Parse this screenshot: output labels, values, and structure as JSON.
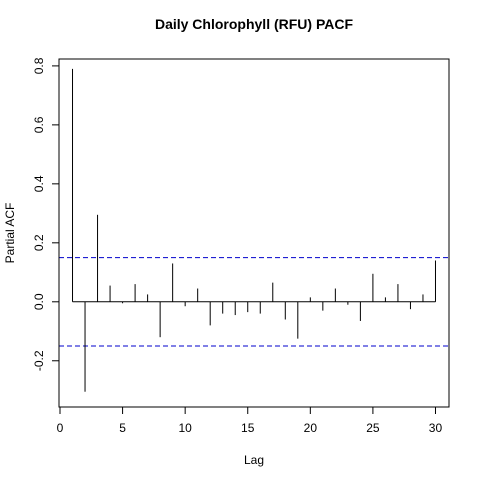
{
  "chart_data": {
    "type": "bar",
    "title": "Daily Chlorophyll (RFU) PACF",
    "xlabel": "Lag",
    "ylabel": "Partial ACF",
    "xlim": [
      0,
      31
    ],
    "ylim": [
      -0.35,
      0.82
    ],
    "x_ticks": [
      0,
      5,
      10,
      15,
      20,
      25,
      30
    ],
    "y_ticks": [
      -0.2,
      0.0,
      0.2,
      0.4,
      0.6,
      0.8
    ],
    "x_tick_labels": [
      "0",
      "5",
      "10",
      "15",
      "20",
      "25",
      "30"
    ],
    "y_tick_labels": [
      "-0.2",
      "0.0",
      "0.2",
      "0.4",
      "0.6",
      "0.8"
    ],
    "confidence_bounds": [
      0.15,
      -0.15
    ],
    "confidence_color": "#0000cc",
    "lags": [
      1,
      2,
      3,
      4,
      5,
      6,
      7,
      8,
      9,
      10,
      11,
      12,
      13,
      14,
      15,
      16,
      17,
      18,
      19,
      20,
      21,
      22,
      23,
      24,
      25,
      26,
      27,
      28,
      29,
      30
    ],
    "values": [
      0.79,
      -0.305,
      0.295,
      0.055,
      -0.005,
      0.06,
      0.025,
      -0.12,
      0.13,
      -0.015,
      0.045,
      -0.08,
      -0.04,
      -0.045,
      -0.035,
      -0.04,
      0.065,
      -0.06,
      -0.125,
      0.015,
      -0.03,
      0.045,
      -0.01,
      -0.065,
      0.095,
      0.015,
      0.06,
      -0.025,
      0.025,
      0.14
    ],
    "grid": false,
    "legend": false
  }
}
